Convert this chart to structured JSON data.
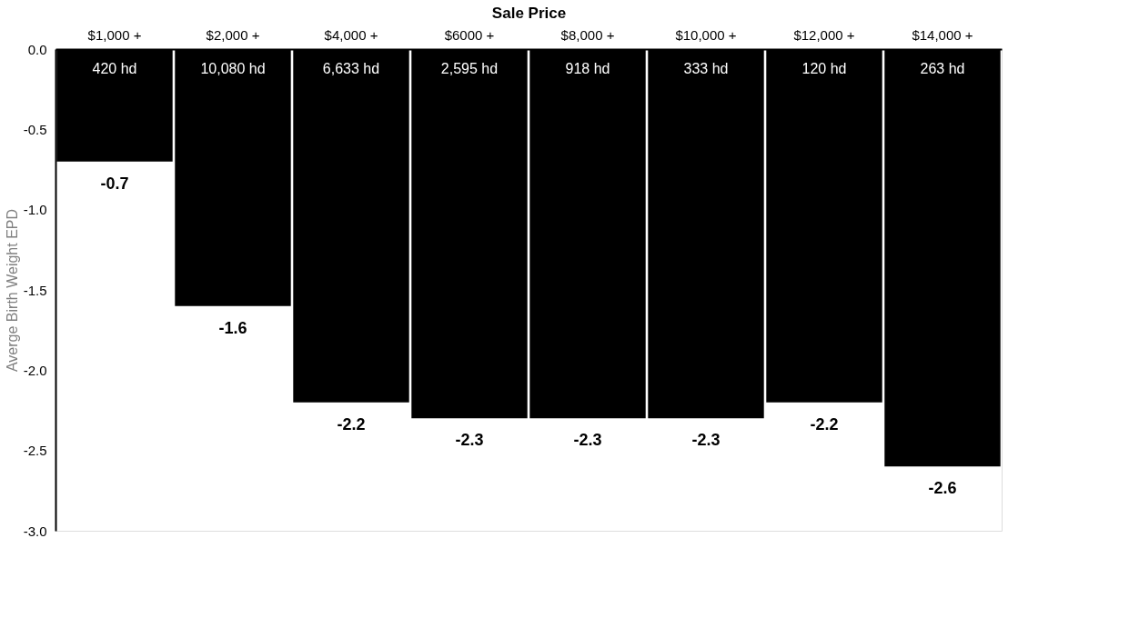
{
  "chart_data": {
    "type": "bar",
    "xlabel": "Sale Price",
    "ylabel": "Averge Birth Weight EPD",
    "categories": [
      "$1,000 +",
      "$2,000 +",
      "$4,000 +",
      "$6000 +",
      "$8,000 +",
      "$10,000 +",
      "$12,000 +",
      "$14,000 +"
    ],
    "values": [
      -0.7,
      -1.6,
      -2.2,
      -2.3,
      -2.3,
      -2.3,
      -2.2,
      -2.6
    ],
    "color": "#000000",
    "ylim": [
      -3,
      0
    ],
    "yticks": [
      {
        "value": 0,
        "label": "0.0"
      },
      {
        "value": -0.5,
        "label": "-0.5"
      },
      {
        "value": -1,
        "label": "-1.0"
      },
      {
        "value": -1.5,
        "label": "-1.5"
      },
      {
        "value": -2,
        "label": "-2.0"
      },
      {
        "value": -2.5,
        "label": "-2.5"
      },
      {
        "value": -3,
        "label": "-3.0"
      }
    ],
    "grid": false,
    "data_labels": true,
    "annotations": [
      {
        "text": "420 hd",
        "x": "$1,000 +",
        "y": 0
      },
      {
        "text": "10,080 hd",
        "x": "$2,000 +",
        "y": 0
      },
      {
        "text": "6,633 hd",
        "x": "$4,000 +",
        "y": 0
      },
      {
        "text": "2,595 hd",
        "x": "$6000 +",
        "y": 0
      },
      {
        "text": "918 hd",
        "x": "$8,000 +",
        "y": 0
      },
      {
        "text": "333 hd",
        "x": "$10,000 +",
        "y": 0
      },
      {
        "text": "120 hd",
        "x": "$12,000 +",
        "y": 0
      },
      {
        "text": "263 hd",
        "x": "$14,000 +",
        "y": 0
      }
    ]
  }
}
